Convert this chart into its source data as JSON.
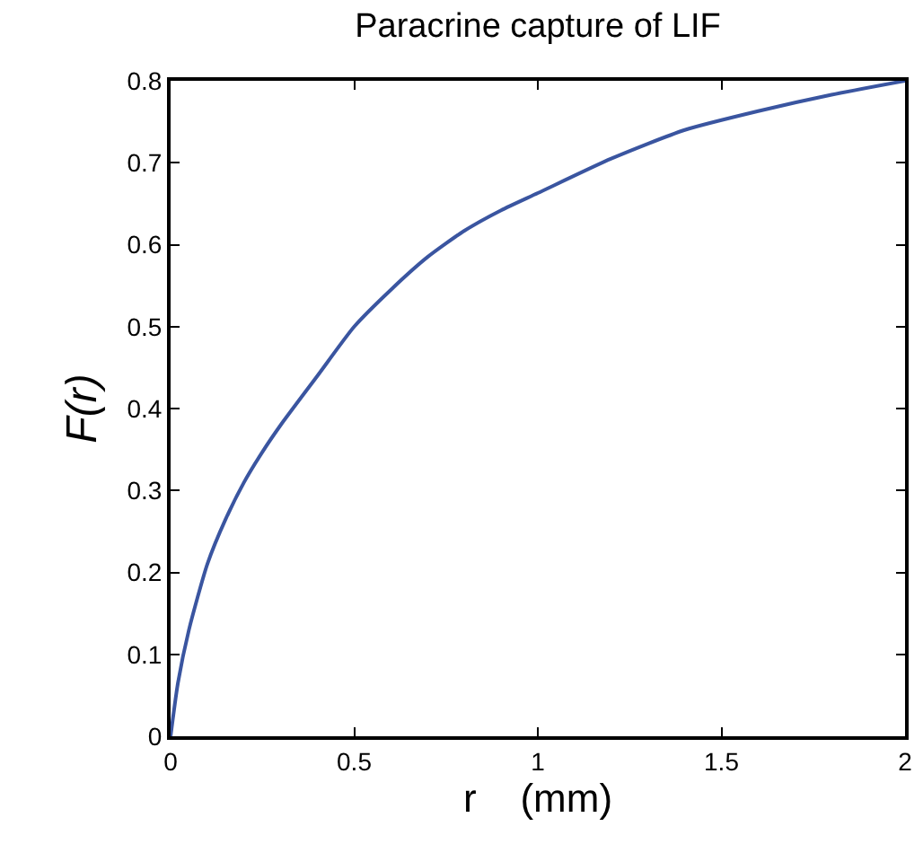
{
  "chart_data": {
    "type": "line",
    "title": "Paracrine capture of LIF",
    "xlabel": "r    (mm)",
    "ylabel": "F(r)",
    "x": [
      0,
      0.02,
      0.05,
      0.1,
      0.15,
      0.2,
      0.25,
      0.3,
      0.4,
      0.5,
      0.6,
      0.7,
      0.8,
      0.9,
      1.0,
      1.2,
      1.4,
      1.6,
      1.8,
      2.0
    ],
    "series": [
      {
        "color": "#3a55a0",
        "values": [
          0,
          0.065,
          0.13,
          0.21,
          0.265,
          0.31,
          0.347,
          0.38,
          0.44,
          0.5,
          0.545,
          0.585,
          0.617,
          0.642,
          0.663,
          0.705,
          0.74,
          0.763,
          0.783,
          0.8
        ]
      }
    ],
    "xlim": [
      0,
      2
    ],
    "ylim": [
      0,
      0.8
    ],
    "xticks": [
      0,
      0.5,
      1,
      1.5,
      2
    ],
    "yticks": [
      0,
      0.1,
      0.2,
      0.3,
      0.4,
      0.5,
      0.6,
      0.7,
      0.8
    ],
    "marker": "none",
    "line_style": "solid"
  }
}
